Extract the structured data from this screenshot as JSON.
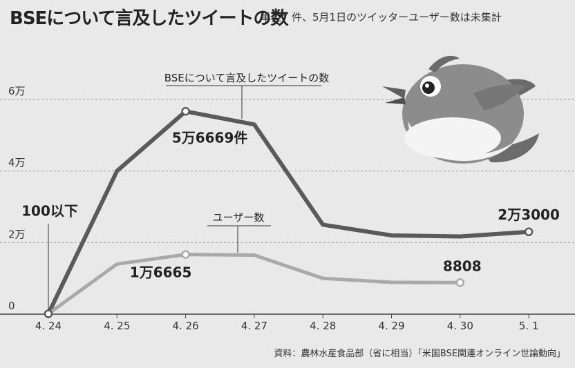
{
  "header": {
    "title": "BSEについて言及したツイートの数",
    "subtitle": "単位：件、5月1日のツイッターユーザー数は未集計"
  },
  "source": "資料：農林水産食品部（省に相当）「米国BSE関連オンライン世論動向」",
  "colors": {
    "tweets": "#5a5a5a",
    "users": "#a9a9a9",
    "background": "#e9e9e9"
  },
  "icon": "bird-icon",
  "chart_data": {
    "type": "line",
    "categories": [
      "4. 24",
      "4. 25",
      "4. 26",
      "4. 27",
      "4. 28",
      "4. 29",
      "4. 30",
      "5. 1"
    ],
    "ylim": [
      0,
      60000
    ],
    "yticks": [
      0,
      20000,
      40000,
      60000
    ],
    "ytick_labels": [
      "0",
      "2万",
      "4万",
      "6万"
    ],
    "grid": true,
    "series": [
      {
        "name": "BSEについて言及したツイートの数",
        "values": [
          100,
          40000,
          56669,
          53000,
          25000,
          22000,
          21700,
          23000
        ]
      },
      {
        "name": "ユーザー数",
        "values": [
          100,
          14000,
          16665,
          16500,
          10000,
          8900,
          8808,
          null
        ]
      }
    ],
    "annotations": [
      {
        "text": "100以下",
        "series": 0,
        "index": 0
      },
      {
        "text": "5万6669件",
        "series": 0,
        "index": 2
      },
      {
        "text": "2万3000",
        "series": 0,
        "index": 7
      },
      {
        "text": "1万6665",
        "series": 1,
        "index": 2
      },
      {
        "text": "8808",
        "series": 1,
        "index": 6
      }
    ]
  }
}
